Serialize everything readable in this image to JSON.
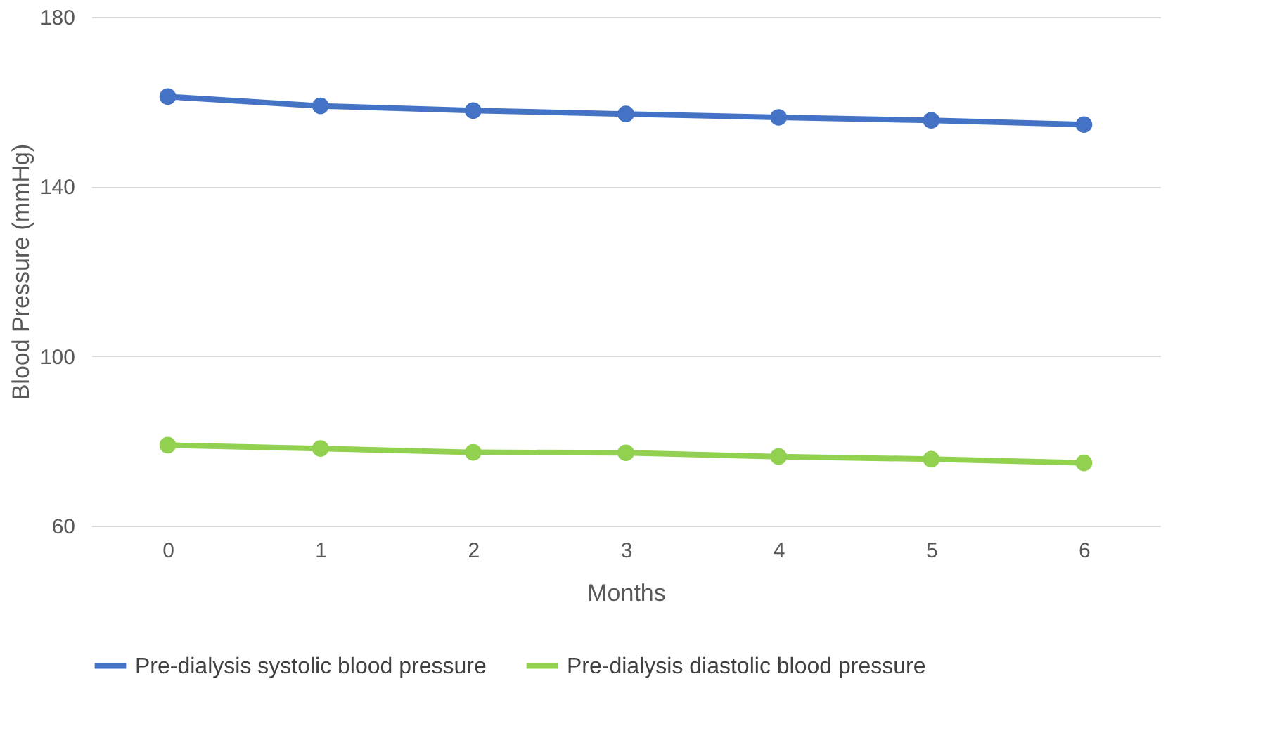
{
  "chart_data": {
    "type": "line",
    "xlabel": "Months",
    "ylabel": "Blood Pressure (mmHg)",
    "categories": [
      "0",
      "1",
      "2",
      "3",
      "4",
      "5",
      "6"
    ],
    "series": [
      {
        "name": "Pre-dialysis systolic blood pressure",
        "color": "#4472c4",
        "values": [
          161.2,
          159.0,
          157.9,
          157.1,
          156.3,
          155.6,
          154.6
        ]
      },
      {
        "name": "Pre-dialysis diastolic blood pressure",
        "color": "#92d050",
        "values": [
          79.0,
          78.2,
          77.3,
          77.2,
          76.3,
          75.7,
          74.8
        ]
      }
    ],
    "ylim": [
      60,
      180
    ],
    "yticks": [
      60,
      100,
      140,
      180
    ],
    "grid": "y",
    "legend": "bottom",
    "marker": "circle",
    "line_style": "solid"
  }
}
